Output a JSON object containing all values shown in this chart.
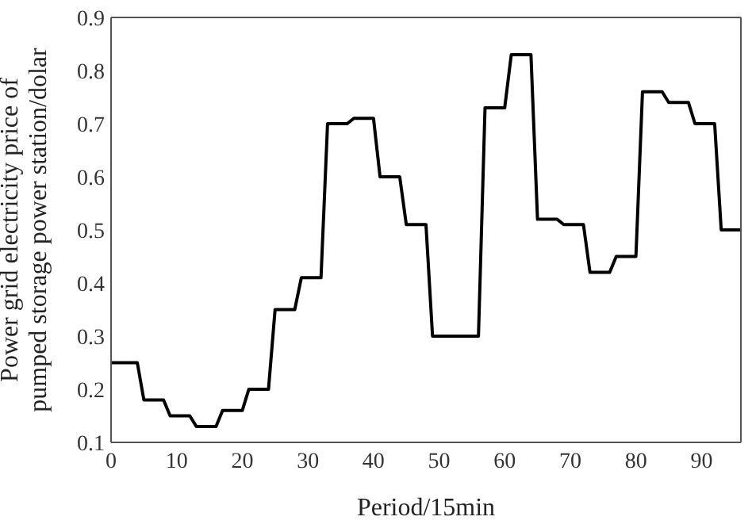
{
  "chart_data": {
    "type": "line",
    "xlabel": "Period/15min",
    "ylabel": "Power grid electricity price of\npumped storage power station/dolar",
    "xlim": [
      0,
      96
    ],
    "xticks": [
      0,
      10,
      20,
      30,
      40,
      50,
      60,
      70,
      80,
      90
    ],
    "ylim": [
      0.1,
      0.9
    ],
    "yticks": [
      0.1,
      0.2,
      0.3,
      0.4,
      0.5,
      0.6,
      0.7,
      0.8,
      0.9
    ],
    "grid": false,
    "legend": false,
    "marker": "none",
    "line_style": "solid",
    "series": [
      {
        "color": "#000000",
        "x": [
          0,
          4,
          5,
          8,
          9,
          12,
          13,
          16,
          17,
          20,
          21,
          24,
          25,
          28,
          29,
          32,
          33,
          36,
          37,
          40,
          41,
          44,
          45,
          48,
          49,
          56,
          57,
          60,
          61,
          64,
          65,
          68,
          69,
          72,
          73,
          76,
          77,
          80,
          81,
          84,
          85,
          88,
          89,
          92,
          93,
          96
        ],
        "values": [
          0.25,
          0.25,
          0.18,
          0.18,
          0.15,
          0.15,
          0.13,
          0.13,
          0.16,
          0.16,
          0.2,
          0.2,
          0.35,
          0.35,
          0.41,
          0.41,
          0.7,
          0.7,
          0.71,
          0.71,
          0.6,
          0.6,
          0.51,
          0.51,
          0.3,
          0.3,
          0.73,
          0.73,
          0.83,
          0.83,
          0.52,
          0.52,
          0.51,
          0.51,
          0.42,
          0.42,
          0.45,
          0.45,
          0.76,
          0.76,
          0.74,
          0.74,
          0.7,
          0.7,
          0.5,
          0.5
        ]
      }
    ]
  }
}
